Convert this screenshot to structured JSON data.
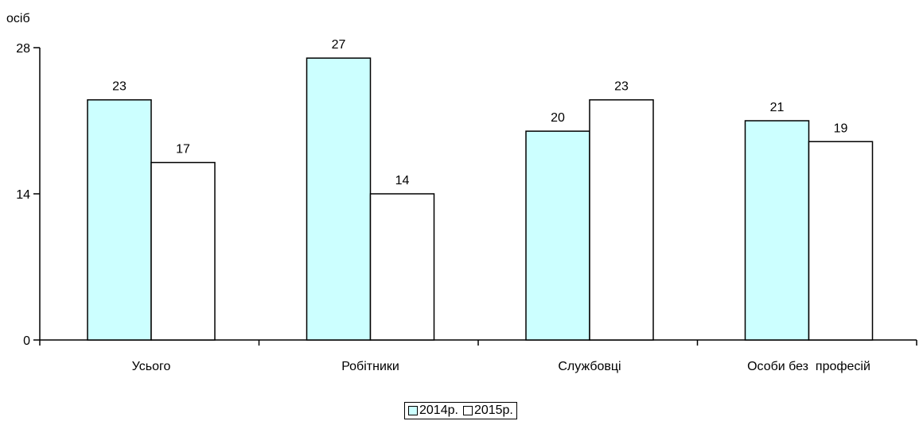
{
  "chart_data": {
    "type": "bar",
    "ylabel": "осіб",
    "ylim": [
      0,
      28
    ],
    "yticks": [
      0,
      14,
      28
    ],
    "categories": [
      "Усього",
      "Робітники",
      "Службовці",
      "Особи без  професій"
    ],
    "series": [
      {
        "name": "2014р.",
        "values": [
          23,
          27,
          20,
          21
        ],
        "color": "#ccffff"
      },
      {
        "name": "2015р.",
        "values": [
          17,
          14,
          23,
          19
        ],
        "color": "#ffffff"
      }
    ],
    "grid": false,
    "legend": "bottom-center"
  }
}
